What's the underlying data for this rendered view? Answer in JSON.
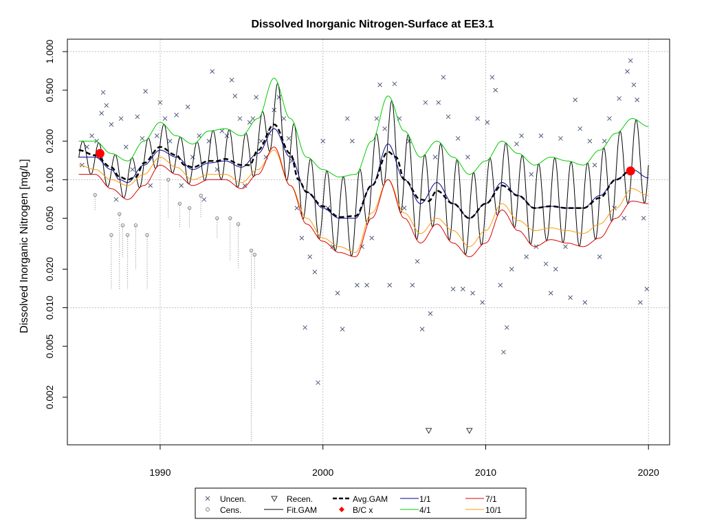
{
  "chart_data": {
    "type": "scatter",
    "title": "Dissolved Inorganic Nitrogen-Surface at EE3.1",
    "xlabel": "",
    "ylabel": "Dissolved Inorganic Nitrogen [mg/L]",
    "y_scale": "log",
    "xlim": [
      1984.3,
      2021.3
    ],
    "ylim": [
      0.00085,
      1.25
    ],
    "x_ticks": [
      {
        "value": 1990,
        "label": "1990"
      },
      {
        "value": 2000,
        "label": "2000"
      },
      {
        "value": 2010,
        "label": "2010"
      },
      {
        "value": 2020,
        "label": "2020"
      }
    ],
    "y_ticks": [
      {
        "value": 1.0,
        "label": "1.000"
      },
      {
        "value": 0.5,
        "label": "0.500"
      },
      {
        "value": 0.2,
        "label": "0.200"
      },
      {
        "value": 0.1,
        "label": "0.100"
      },
      {
        "value": 0.05,
        "label": "0.050"
      },
      {
        "value": 0.02,
        "label": "0.020"
      },
      {
        "value": 0.01,
        "label": "0.010"
      },
      {
        "value": 0.005,
        "label": "0.005"
      },
      {
        "value": 0.002,
        "label": "0.002"
      }
    ],
    "grid": true,
    "gridlines_y": [
      1.0,
      0.1,
      0.01
    ],
    "gridlines_x": [
      1990,
      2000,
      2010,
      2020
    ],
    "colors": {
      "uncensored": "#4d5a7a",
      "censored": "#808080",
      "fit_gam": "#000000",
      "avg_gam": "#000000",
      "bc": "#ff0000",
      "s1_1": "#00008b",
      "s4_1": "#00cc00",
      "s7_1": "#dd0000",
      "s10_1": "#ff9900",
      "grid": "#bfbfbf"
    },
    "legend": {
      "placement": "bottom-center",
      "entries": [
        {
          "key": "uncen",
          "label": "Uncen."
        },
        {
          "key": "cens",
          "label": "Cens."
        },
        {
          "key": "recen",
          "label": "Recen."
        },
        {
          "key": "fitgam",
          "label": "Fit.GAM"
        },
        {
          "key": "avggam",
          "label": "Avg.GAM"
        },
        {
          "key": "bc",
          "label": "B/C x"
        },
        {
          "key": "s1",
          "label": "1/1"
        },
        {
          "key": "s4",
          "label": "4/1"
        },
        {
          "key": "s7",
          "label": "7/1"
        },
        {
          "key": "s10",
          "label": "10/1"
        }
      ]
    },
    "series": [
      {
        "key": "avg_gam",
        "x": [
          1985.0,
          1986.0,
          1987.0,
          1987.5,
          1988.0,
          1988.5,
          1989.0,
          1990.0,
          1991.0,
          1991.5,
          1992.0,
          1993.0,
          1993.5,
          1994.0,
          1995.0,
          1995.5,
          1996.0,
          1997.0,
          1998.0,
          1998.5,
          1999.0,
          2000.0,
          2001.0,
          2002.0,
          2003.0,
          2004.0,
          2004.5,
          2005.0,
          2006.0,
          2006.5,
          2007.0,
          2008.0,
          2009.0,
          2010.0,
          2011.0,
          2012.0,
          2013.0,
          2014.0,
          2015.0,
          2016.0,
          2017.0,
          2018.0,
          2019.0
        ],
        "y": [
          0.17,
          0.155,
          0.125,
          0.105,
          0.1,
          0.105,
          0.135,
          0.18,
          0.155,
          0.13,
          0.125,
          0.14,
          0.14,
          0.145,
          0.13,
          0.13,
          0.17,
          0.27,
          0.16,
          0.1,
          0.08,
          0.062,
          0.051,
          0.052,
          0.09,
          0.165,
          0.15,
          0.1,
          0.07,
          0.068,
          0.082,
          0.065,
          0.05,
          0.065,
          0.09,
          0.075,
          0.06,
          0.062,
          0.06,
          0.06,
          0.072,
          0.1,
          0.12
        ]
      },
      {
        "key": "s1_1",
        "x": [
          1985.0,
          1986.0,
          1987.0,
          1987.5,
          1988.0,
          1989.0,
          1990.0,
          1991.0,
          1992.0,
          1993.0,
          1994.0,
          1995.0,
          1996.0,
          1997.0,
          1998.0,
          1999.0,
          2000.0,
          2001.0,
          2002.0,
          2003.0,
          2004.0,
          2005.0,
          2006.0,
          2007.0,
          2008.0,
          2009.0,
          2010.0,
          2011.0,
          2012.0,
          2013.0,
          2014.0,
          2015.0,
          2016.0,
          2017.0,
          2018.0,
          2019.0,
          2020.0
        ],
        "y": [
          0.15,
          0.15,
          0.12,
          0.1,
          0.095,
          0.13,
          0.17,
          0.15,
          0.12,
          0.135,
          0.14,
          0.125,
          0.16,
          0.25,
          0.15,
          0.08,
          0.06,
          0.05,
          0.05,
          0.09,
          0.19,
          0.1,
          0.065,
          0.095,
          0.065,
          0.05,
          0.065,
          0.095,
          0.075,
          0.06,
          0.062,
          0.06,
          0.06,
          0.075,
          0.1,
          0.12,
          0.103
        ]
      },
      {
        "key": "s4_1",
        "x": [
          1985.0,
          1986.0,
          1987.0,
          1988.0,
          1989.0,
          1990.0,
          1991.0,
          1992.0,
          1993.0,
          1994.0,
          1995.0,
          1996.0,
          1997.0,
          1998.0,
          1999.0,
          2000.0,
          2001.0,
          2002.0,
          2003.0,
          2004.0,
          2005.0,
          2006.0,
          2007.0,
          2008.0,
          2009.0,
          2010.0,
          2011.0,
          2012.0,
          2013.0,
          2014.0,
          2015.0,
          2016.0,
          2017.0,
          2018.0,
          2019.0,
          2020.0
        ],
        "y": [
          0.2,
          0.2,
          0.16,
          0.14,
          0.2,
          0.28,
          0.22,
          0.19,
          0.24,
          0.25,
          0.22,
          0.3,
          0.62,
          0.3,
          0.15,
          0.12,
          0.105,
          0.11,
          0.2,
          0.45,
          0.24,
          0.15,
          0.2,
          0.15,
          0.11,
          0.14,
          0.2,
          0.16,
          0.13,
          0.15,
          0.14,
          0.13,
          0.17,
          0.23,
          0.3,
          0.26
        ]
      },
      {
        "key": "s7_1",
        "x": [
          1985.0,
          1986.0,
          1987.0,
          1988.0,
          1989.0,
          1990.0,
          1991.0,
          1992.0,
          1993.0,
          1994.0,
          1995.0,
          1996.0,
          1997.0,
          1998.0,
          1999.0,
          2000.0,
          2001.0,
          2002.0,
          2003.0,
          2004.0,
          2005.0,
          2006.0,
          2007.0,
          2008.0,
          2009.0,
          2010.0,
          2011.0,
          2012.0,
          2013.0,
          2014.0,
          2015.0,
          2016.0,
          2017.0,
          2018.0,
          2019.0,
          2020.0
        ],
        "y": [
          0.11,
          0.11,
          0.085,
          0.07,
          0.09,
          0.13,
          0.11,
          0.09,
          0.1,
          0.1,
          0.085,
          0.11,
          0.18,
          0.09,
          0.045,
          0.033,
          0.027,
          0.025,
          0.05,
          0.1,
          0.05,
          0.032,
          0.045,
          0.032,
          0.025,
          0.032,
          0.058,
          0.04,
          0.03,
          0.034,
          0.032,
          0.03,
          0.035,
          0.05,
          0.068,
          0.065
        ]
      },
      {
        "key": "s10_1",
        "x": [
          1985.0,
          1986.0,
          1987.0,
          1988.0,
          1989.0,
          1990.0,
          1991.0,
          1992.0,
          1993.0,
          1994.0,
          1995.0,
          1996.0,
          1997.0,
          1998.0,
          1999.0,
          2000.0,
          2001.0,
          2002.0,
          2003.0,
          2004.0,
          2005.0,
          2006.0,
          2007.0,
          2008.0,
          2009.0,
          2010.0,
          2011.0,
          2012.0,
          2013.0,
          2014.0,
          2015.0,
          2016.0,
          2017.0,
          2018.0,
          2019.0,
          2020.0
        ],
        "y": [
          0.13,
          0.12,
          0.1,
          0.09,
          0.11,
          0.15,
          0.125,
          0.1,
          0.11,
          0.11,
          0.095,
          0.12,
          0.17,
          0.09,
          0.05,
          0.035,
          0.03,
          0.027,
          0.055,
          0.1,
          0.055,
          0.038,
          0.05,
          0.04,
          0.03,
          0.04,
          0.065,
          0.048,
          0.04,
          0.042,
          0.04,
          0.038,
          0.045,
          0.06,
          0.085,
          0.075
        ]
      }
    ],
    "bc_points": [
      {
        "x": 1986.3,
        "y": 0.16
      },
      {
        "x": 2018.9,
        "y": 0.117
      }
    ],
    "uncensored_points": [
      [
        1985.2,
        0.13
      ],
      [
        1985.5,
        0.18
      ],
      [
        1985.8,
        0.22
      ],
      [
        1986.1,
        0.2
      ],
      [
        1986.4,
        0.33
      ],
      [
        1986.5,
        0.48
      ],
      [
        1986.7,
        0.38
      ],
      [
        1987.0,
        0.27
      ],
      [
        1987.3,
        0.07
      ],
      [
        1987.6,
        0.3
      ],
      [
        1987.9,
        0.18
      ],
      [
        1988.3,
        0.12
      ],
      [
        1988.6,
        0.31
      ],
      [
        1988.9,
        0.21
      ],
      [
        1989.1,
        0.49
      ],
      [
        1989.4,
        0.09
      ],
      [
        1989.8,
        0.22
      ],
      [
        1990.0,
        0.4
      ],
      [
        1990.3,
        0.3
      ],
      [
        1990.6,
        0.2
      ],
      [
        1991.0,
        0.32
      ],
      [
        1991.3,
        0.09
      ],
      [
        1991.7,
        0.37
      ],
      [
        1992.0,
        0.15
      ],
      [
        1992.4,
        0.22
      ],
      [
        1992.7,
        0.07
      ],
      [
        1993.0,
        0.2
      ],
      [
        1993.2,
        0.7
      ],
      [
        1993.5,
        0.12
      ],
      [
        1993.8,
        0.24
      ],
      [
        1994.1,
        0.22
      ],
      [
        1994.4,
        0.6
      ],
      [
        1994.6,
        0.45
      ],
      [
        1994.9,
        0.3
      ],
      [
        1995.2,
        0.09
      ],
      [
        1995.5,
        0.28
      ],
      [
        1995.7,
        0.3
      ],
      [
        1995.9,
        0.44
      ],
      [
        1996.2,
        0.2
      ],
      [
        1996.5,
        0.15
      ],
      [
        1996.7,
        0.23
      ],
      [
        1997.0,
        0.35
      ],
      [
        1997.3,
        0.44
      ],
      [
        1997.6,
        0.3
      ],
      [
        1997.9,
        0.21
      ],
      [
        1998.1,
        0.14
      ],
      [
        1998.4,
        0.06
      ],
      [
        1998.7,
        0.035
      ],
      [
        1998.9,
        0.007
      ],
      [
        1999.2,
        0.025
      ],
      [
        1999.5,
        0.019
      ],
      [
        1999.7,
        0.0026
      ],
      [
        2000.0,
        0.2
      ],
      [
        2000.3,
        0.06
      ],
      [
        2000.6,
        0.03
      ],
      [
        2000.9,
        0.013
      ],
      [
        2001.2,
        0.0068
      ],
      [
        2001.5,
        0.3
      ],
      [
        2001.8,
        0.2
      ],
      [
        2002.1,
        0.015
      ],
      [
        2002.4,
        0.03
      ],
      [
        2002.7,
        0.015
      ],
      [
        2003.0,
        0.035
      ],
      [
        2003.3,
        0.3
      ],
      [
        2003.5,
        0.55
      ],
      [
        2003.8,
        0.25
      ],
      [
        2004.1,
        0.015
      ],
      [
        2004.4,
        0.56
      ],
      [
        2004.7,
        0.3
      ],
      [
        2005.0,
        0.06
      ],
      [
        2005.3,
        0.2
      ],
      [
        2005.5,
        0.015
      ],
      [
        2005.8,
        0.023
      ],
      [
        2006.1,
        0.0068
      ],
      [
        2006.3,
        0.4
      ],
      [
        2006.6,
        0.009
      ],
      [
        2006.9,
        0.15
      ],
      [
        2007.1,
        0.4
      ],
      [
        2007.4,
        0.63
      ],
      [
        2007.7,
        0.31
      ],
      [
        2008.0,
        0.014
      ],
      [
        2008.3,
        0.21
      ],
      [
        2008.6,
        0.014
      ],
      [
        2008.9,
        0.15
      ],
      [
        2009.2,
        0.013
      ],
      [
        2009.5,
        0.3
      ],
      [
        2009.8,
        0.011
      ],
      [
        2010.1,
        0.28
      ],
      [
        2010.4,
        0.63
      ],
      [
        2010.6,
        0.5
      ],
      [
        2010.9,
        0.015
      ],
      [
        2011.1,
        0.0045
      ],
      [
        2011.3,
        0.007
      ],
      [
        2011.6,
        0.02
      ],
      [
        2011.9,
        0.19
      ],
      [
        2012.2,
        0.22
      ],
      [
        2012.5,
        0.025
      ],
      [
        2012.8,
        0.11
      ],
      [
        2013.1,
        0.03
      ],
      [
        2013.4,
        0.22
      ],
      [
        2013.7,
        0.022
      ],
      [
        2014.0,
        0.013
      ],
      [
        2014.3,
        0.02
      ],
      [
        2014.6,
        0.21
      ],
      [
        2014.9,
        0.03
      ],
      [
        2015.2,
        0.012
      ],
      [
        2015.5,
        0.42
      ],
      [
        2015.8,
        0.25
      ],
      [
        2016.1,
        0.011
      ],
      [
        2016.4,
        0.2
      ],
      [
        2016.7,
        0.13
      ],
      [
        2017.0,
        0.025
      ],
      [
        2017.3,
        0.2
      ],
      [
        2017.6,
        0.3
      ],
      [
        2017.9,
        0.06
      ],
      [
        2018.2,
        0.43
      ],
      [
        2018.5,
        0.05
      ],
      [
        2018.7,
        0.7
      ],
      [
        2018.9,
        0.85
      ],
      [
        2019.1,
        0.55
      ],
      [
        2019.3,
        0.42
      ],
      [
        2019.5,
        0.011
      ],
      [
        2019.7,
        0.05
      ],
      [
        2019.9,
        0.014
      ]
    ],
    "censored_points": [
      {
        "x": 1986.0,
        "y": 0.076,
        "lower": 0.058
      },
      {
        "x": 1987.0,
        "y": 0.037,
        "lower": 0.014
      },
      {
        "x": 1987.5,
        "y": 0.054,
        "lower": 0.014
      },
      {
        "x": 1987.7,
        "y": 0.044,
        "lower": 0.025
      },
      {
        "x": 1988.0,
        "y": 0.037,
        "lower": 0.014
      },
      {
        "x": 1988.5,
        "y": 0.044,
        "lower": 0.02
      },
      {
        "x": 1989.2,
        "y": 0.037,
        "lower": 0.014
      },
      {
        "x": 1990.5,
        "y": 0.1,
        "lower": 0.05
      },
      {
        "x": 1991.2,
        "y": 0.065,
        "lower": 0.042
      },
      {
        "x": 1991.8,
        "y": 0.06,
        "lower": 0.042
      },
      {
        "x": 1992.5,
        "y": 0.075,
        "lower": 0.05
      },
      {
        "x": 1993.5,
        "y": 0.05,
        "lower": 0.035
      },
      {
        "x": 1994.3,
        "y": 0.05,
        "lower": 0.023
      },
      {
        "x": 1994.8,
        "y": 0.045,
        "lower": 0.02
      },
      {
        "x": 1995.6,
        "y": 0.028,
        "lower": 0.0009
      },
      {
        "x": 1995.8,
        "y": 0.026,
        "lower": 0.014
      }
    ],
    "recensored_points": [
      {
        "x": 2006.5,
        "y": 0.0011
      },
      {
        "x": 2009.0,
        "y": 0.0011
      }
    ]
  }
}
